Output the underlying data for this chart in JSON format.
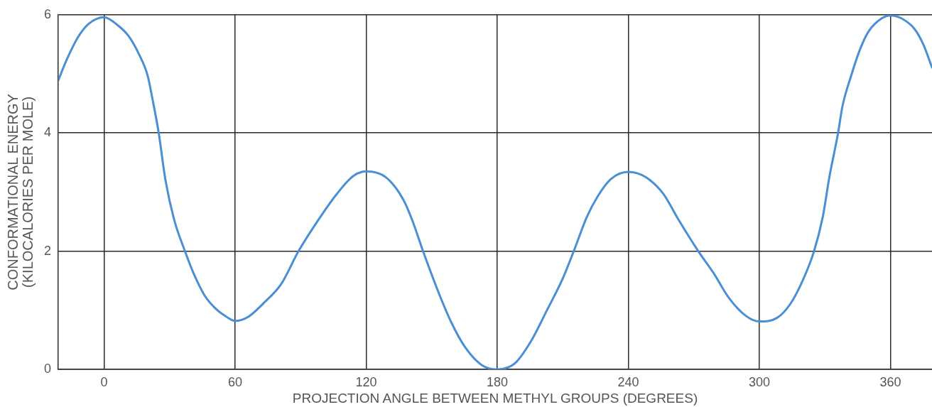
{
  "chart_data": {
    "type": "line",
    "xlabel": "PROJECTION ANGLE BETWEEN METHYL GROUPS (DEGREES)",
    "ylabel": "CONFORMATIONAL ENERGY\n(KILOCALORIES PER MOLE)",
    "x": [
      -21,
      -17,
      -12,
      -7,
      0,
      6,
      11,
      16,
      20,
      22,
      25,
      28,
      32,
      37,
      41,
      46,
      51,
      56,
      60,
      66,
      73,
      81,
      89,
      99,
      107,
      114,
      120,
      129,
      137,
      141,
      146,
      153,
      159,
      165,
      173,
      180,
      188,
      195,
      203,
      210,
      215,
      221,
      226,
      232,
      240,
      248,
      256,
      263,
      272,
      279,
      286,
      294,
      300,
      308,
      314,
      320,
      325,
      329,
      332,
      336,
      338,
      342,
      346,
      350,
      356,
      360,
      365,
      371,
      375,
      379
    ],
    "values": [
      4.89,
      5.25,
      5.62,
      5.85,
      5.96,
      5.83,
      5.65,
      5.33,
      4.96,
      4.6,
      4.0,
      3.22,
      2.54,
      2.0,
      1.62,
      1.25,
      1.03,
      0.89,
      0.82,
      0.89,
      1.12,
      1.44,
      2.0,
      2.58,
      2.99,
      3.27,
      3.35,
      3.25,
      2.87,
      2.53,
      2.0,
      1.31,
      0.79,
      0.39,
      0.07,
      0,
      0.1,
      0.45,
      1.02,
      1.54,
      2.0,
      2.58,
      2.93,
      3.22,
      3.34,
      3.25,
      2.97,
      2.53,
      2.0,
      1.63,
      1.21,
      0.9,
      0.81,
      0.87,
      1.1,
      1.52,
      2.0,
      2.58,
      3.25,
      4.0,
      4.45,
      4.97,
      5.41,
      5.72,
      5.94,
      5.99,
      5.94,
      5.76,
      5.5,
      5.11
    ],
    "color": "#4a8fd4",
    "xlim": [
      -21,
      379
    ],
    "xticks": [
      0,
      60,
      120,
      180,
      240,
      300,
      360
    ],
    "ylim": [
      0,
      6
    ],
    "yticks": [
      0,
      2,
      4,
      6
    ],
    "grid": true
  }
}
